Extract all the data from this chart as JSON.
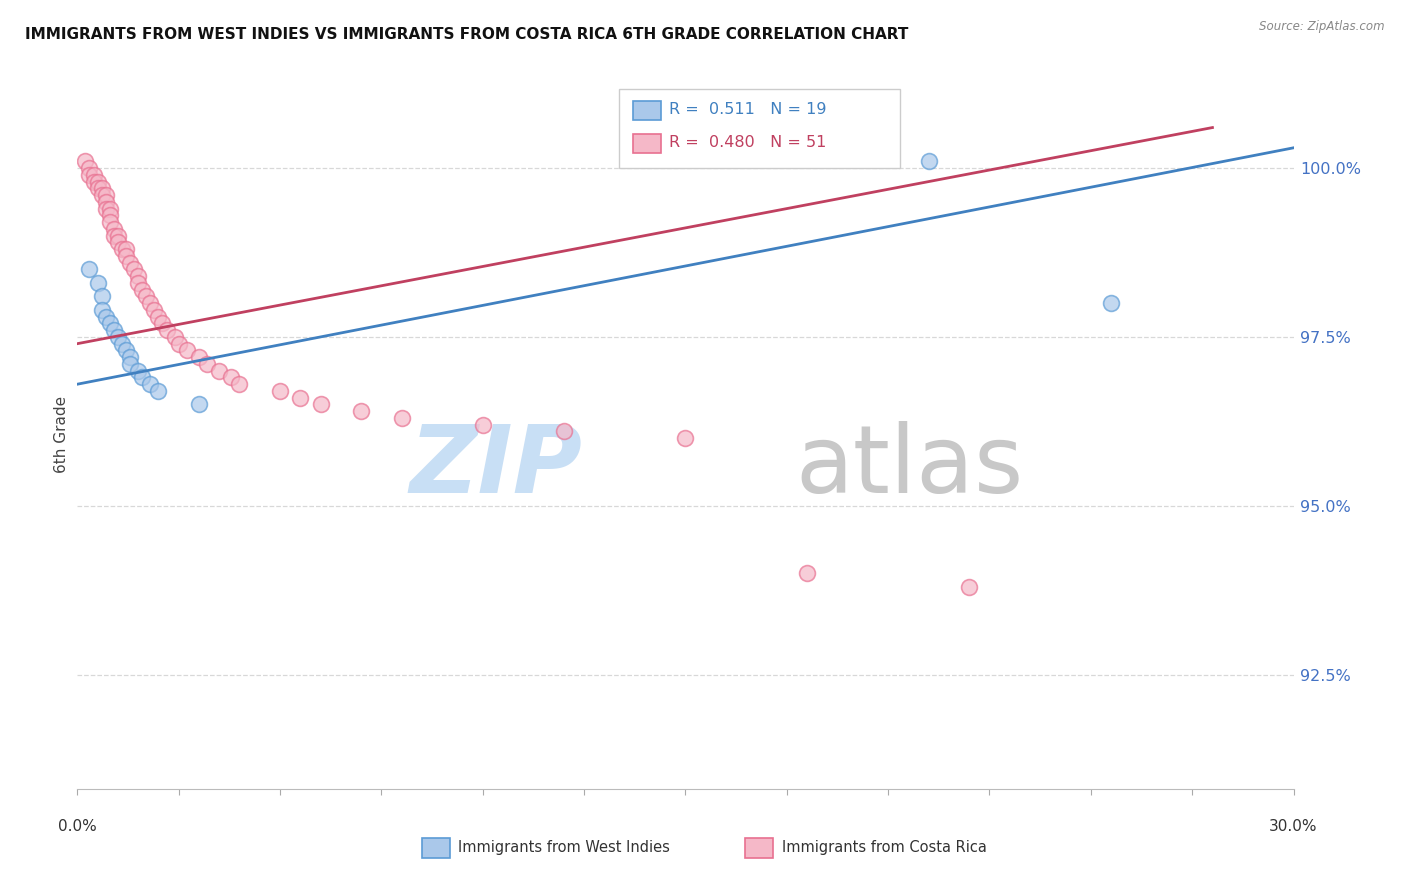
{
  "title": "IMMIGRANTS FROM WEST INDIES VS IMMIGRANTS FROM COSTA RICA 6TH GRADE CORRELATION CHART",
  "source": "Source: ZipAtlas.com",
  "ylabel": "6th Grade",
  "xmin": 0.0,
  "xmax": 0.3,
  "ymin": 0.908,
  "ymax": 1.013,
  "yticks": [
    0.925,
    0.95,
    0.975,
    1.0
  ],
  "ytick_labels": [
    "92.5%",
    "95.0%",
    "97.5%",
    "100.0%"
  ],
  "legend_blue_r": "0.511",
  "legend_blue_n": "19",
  "legend_pink_r": "0.480",
  "legend_pink_n": "51",
  "blue_fill": "#aac8ea",
  "pink_fill": "#f5b8c8",
  "blue_edge": "#5b9bd5",
  "pink_edge": "#e87090",
  "blue_line_color": "#4080c0",
  "pink_line_color": "#c04060",
  "grid_color": "#d8d8d8",
  "blue_points_x": [
    0.003,
    0.005,
    0.006,
    0.006,
    0.007,
    0.008,
    0.009,
    0.01,
    0.011,
    0.012,
    0.013,
    0.013,
    0.015,
    0.016,
    0.018,
    0.02,
    0.03,
    0.21,
    0.255
  ],
  "blue_points_y": [
    0.985,
    0.983,
    0.981,
    0.979,
    0.978,
    0.977,
    0.976,
    0.975,
    0.974,
    0.973,
    0.972,
    0.971,
    0.97,
    0.969,
    0.968,
    0.967,
    0.965,
    1.001,
    0.98
  ],
  "pink_points_x": [
    0.002,
    0.003,
    0.003,
    0.004,
    0.004,
    0.005,
    0.005,
    0.006,
    0.006,
    0.007,
    0.007,
    0.007,
    0.008,
    0.008,
    0.008,
    0.009,
    0.009,
    0.01,
    0.01,
    0.011,
    0.012,
    0.012,
    0.013,
    0.014,
    0.015,
    0.015,
    0.016,
    0.017,
    0.018,
    0.019,
    0.02,
    0.021,
    0.022,
    0.024,
    0.025,
    0.027,
    0.03,
    0.032,
    0.035,
    0.038,
    0.04,
    0.05,
    0.055,
    0.06,
    0.07,
    0.08,
    0.1,
    0.12,
    0.15,
    0.18,
    0.22
  ],
  "pink_points_y": [
    1.001,
    1.0,
    0.999,
    0.999,
    0.998,
    0.998,
    0.997,
    0.997,
    0.996,
    0.996,
    0.995,
    0.994,
    0.994,
    0.993,
    0.992,
    0.991,
    0.99,
    0.99,
    0.989,
    0.988,
    0.988,
    0.987,
    0.986,
    0.985,
    0.984,
    0.983,
    0.982,
    0.981,
    0.98,
    0.979,
    0.978,
    0.977,
    0.976,
    0.975,
    0.974,
    0.973,
    0.972,
    0.971,
    0.97,
    0.969,
    0.968,
    0.967,
    0.966,
    0.965,
    0.964,
    0.963,
    0.962,
    0.961,
    0.96,
    0.94,
    0.938
  ],
  "blue_line_x": [
    0.0,
    0.3
  ],
  "blue_line_y": [
    0.968,
    1.003
  ],
  "pink_line_x": [
    0.0,
    0.28
  ],
  "pink_line_y": [
    0.974,
    1.006
  ],
  "watermark_zip": "#c8dff5",
  "watermark_atlas": "#c8c8c8"
}
